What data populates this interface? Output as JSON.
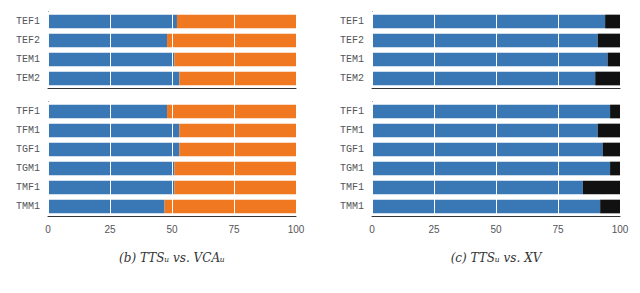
{
  "chart_data": [
    {
      "type": "bar",
      "orientation": "horizontal",
      "stacked": true,
      "grid": true,
      "tick_labels": "y",
      "categories": [
        "TEF1",
        "TEF2",
        "TEM1",
        "TEM2"
      ],
      "series": [
        {
          "color": "#3a78b5",
          "values": [
            52,
            48,
            51,
            53
          ]
        },
        {
          "color": "#f07820",
          "values": [
            48,
            52,
            49,
            47
          ]
        }
      ],
      "xlim": [
        0,
        100
      ],
      "xticks": [
        0,
        25,
        50,
        75,
        100
      ]
    },
    {
      "type": "bar",
      "orientation": "horizontal",
      "stacked": true,
      "grid": true,
      "title": "(b) TTSᵤ vs. VCAᵤ",
      "categories": [
        "TFF1",
        "TFM1",
        "TGF1",
        "TGM1",
        "TMF1",
        "TMM1"
      ],
      "series": [
        {
          "color": "#3a78b5",
          "values": [
            48,
            53,
            53,
            51,
            51,
            47
          ]
        },
        {
          "color": "#f07820",
          "values": [
            52,
            47,
            47,
            49,
            49,
            53
          ]
        }
      ],
      "xlim": [
        0,
        100
      ],
      "xticks": [
        0,
        25,
        50,
        75,
        100
      ]
    },
    {
      "type": "bar",
      "orientation": "horizontal",
      "stacked": true,
      "grid": true,
      "tick_labels": "y",
      "categories": [
        "TEF1",
        "TEF2",
        "TEM1",
        "TEM2"
      ],
      "series": [
        {
          "color": "#3a78b5",
          "values": [
            94,
            91,
            95,
            90
          ]
        },
        {
          "color": "#111111",
          "values": [
            6,
            9,
            5,
            10
          ]
        }
      ],
      "xlim": [
        0,
        100
      ],
      "xticks": [
        0,
        25,
        50,
        75,
        100
      ]
    },
    {
      "type": "bar",
      "orientation": "horizontal",
      "stacked": true,
      "grid": true,
      "title": "(c) TTSᵤ vs. XV",
      "categories": [
        "TFF1",
        "TFM1",
        "TGF1",
        "TGM1",
        "TMF1",
        "TMM1"
      ],
      "series": [
        {
          "color": "#3a78b5",
          "values": [
            96,
            91,
            93,
            96,
            85,
            92
          ]
        },
        {
          "color": "#111111",
          "values": [
            4,
            9,
            7,
            4,
            15,
            8
          ]
        }
      ],
      "xlim": [
        0,
        100
      ],
      "xticks": [
        0,
        25,
        50,
        75,
        100
      ]
    }
  ]
}
